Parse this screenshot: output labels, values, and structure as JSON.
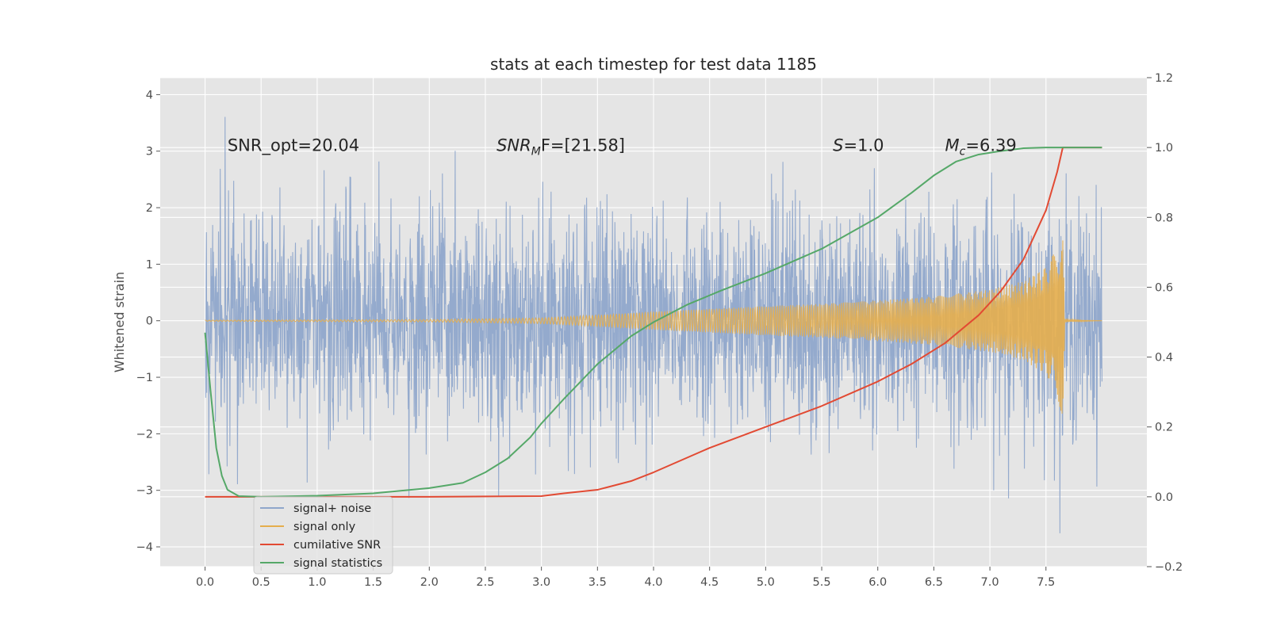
{
  "chart_data": {
    "type": "line",
    "title": "stats at each timestep for test data 1185",
    "ylabel": "Whitened strain",
    "xlim": [
      -0.4,
      8.4
    ],
    "ylim": [
      -4.35,
      4.3
    ],
    "y2lim": [
      -0.2,
      1.2
    ],
    "x_ticks": [
      "0.0",
      "0.5",
      "1.0",
      "1.5",
      "2.0",
      "2.5",
      "3.0",
      "3.5",
      "4.0",
      "4.5",
      "5.0",
      "5.5",
      "6.0",
      "6.5",
      "7.0",
      "7.5"
    ],
    "y_ticks": [
      "4",
      "3",
      "2",
      "1",
      "0",
      "−1",
      "−2",
      "−3",
      "−4"
    ],
    "y2_ticks": [
      "1.2",
      "1.0",
      "0.8",
      "0.6",
      "0.4",
      "0.2",
      "0.0",
      "−0.2"
    ],
    "grid": true,
    "legend_placement": "lower-left",
    "annotations": [
      {
        "text": "SNR_opt=20.04",
        "x": 0.2,
        "y": 3.1
      },
      {
        "text": "SNR_MF=[21.58]",
        "main": "SNR",
        "sub": "M",
        "rest": "F=[21.58]",
        "x": 2.6,
        "y": 3.1
      },
      {
        "text": "S=1.0",
        "main": "S",
        "rest": "=1.0",
        "x": 5.6,
        "y": 3.1
      },
      {
        "text": "M_c=6.39",
        "main": "M",
        "sub": "c",
        "rest": "=6.39",
        "x": 6.6,
        "y": 3.1
      }
    ],
    "series": [
      {
        "name": "signal+ noise",
        "color": "#8fa6cb",
        "axis": "left",
        "description_values": {
          "x_range": [
            0.0,
            8.0
          ],
          "typical_amplitude": 1.0,
          "peak_max": 3.9,
          "peak_min": -4.0
        }
      },
      {
        "name": "signal only",
        "color": "#e5ae4c",
        "axis": "left",
        "x": [
          0.0,
          2.0,
          3.0,
          3.5,
          4.0,
          4.5,
          5.0,
          5.5,
          6.0,
          6.5,
          7.0,
          7.3,
          7.5,
          7.6,
          7.65,
          7.67,
          8.0
        ],
        "envelope": [
          0.01,
          0.02,
          0.05,
          0.1,
          0.16,
          0.21,
          0.26,
          0.3,
          0.36,
          0.43,
          0.55,
          0.7,
          0.95,
          1.3,
          1.8,
          0.02,
          0.0
        ]
      },
      {
        "name": "cumilative SNR",
        "color": "#e24a33",
        "axis": "right",
        "x": [
          0.0,
          1.0,
          2.0,
          3.0,
          3.2,
          3.5,
          3.8,
          4.0,
          4.5,
          5.0,
          5.5,
          6.0,
          6.3,
          6.6,
          6.9,
          7.1,
          7.3,
          7.5,
          7.6,
          7.65,
          8.0
        ],
        "values": [
          0.0,
          0.0,
          0.0,
          0.002,
          0.01,
          0.02,
          0.045,
          0.07,
          0.14,
          0.2,
          0.26,
          0.33,
          0.38,
          0.44,
          0.52,
          0.59,
          0.68,
          0.82,
          0.93,
          1.0,
          1.0
        ]
      },
      {
        "name": "signal statistics",
        "color": "#55a868",
        "axis": "right",
        "x": [
          0.0,
          0.05,
          0.1,
          0.15,
          0.2,
          0.3,
          0.5,
          1.0,
          1.5,
          2.0,
          2.3,
          2.5,
          2.7,
          2.9,
          3.0,
          3.2,
          3.5,
          3.8,
          4.0,
          4.3,
          4.6,
          5.0,
          5.5,
          6.0,
          6.3,
          6.5,
          6.7,
          6.9,
          7.1,
          7.3,
          7.5,
          7.6,
          7.65,
          8.0
        ],
        "values": [
          0.47,
          0.3,
          0.14,
          0.06,
          0.02,
          0.002,
          0.0,
          0.003,
          0.01,
          0.025,
          0.04,
          0.07,
          0.11,
          0.17,
          0.21,
          0.28,
          0.38,
          0.46,
          0.5,
          0.55,
          0.59,
          0.64,
          0.71,
          0.8,
          0.87,
          0.92,
          0.96,
          0.98,
          0.99,
          0.998,
          1.0,
          1.0,
          1.0,
          1.0
        ]
      }
    ]
  }
}
